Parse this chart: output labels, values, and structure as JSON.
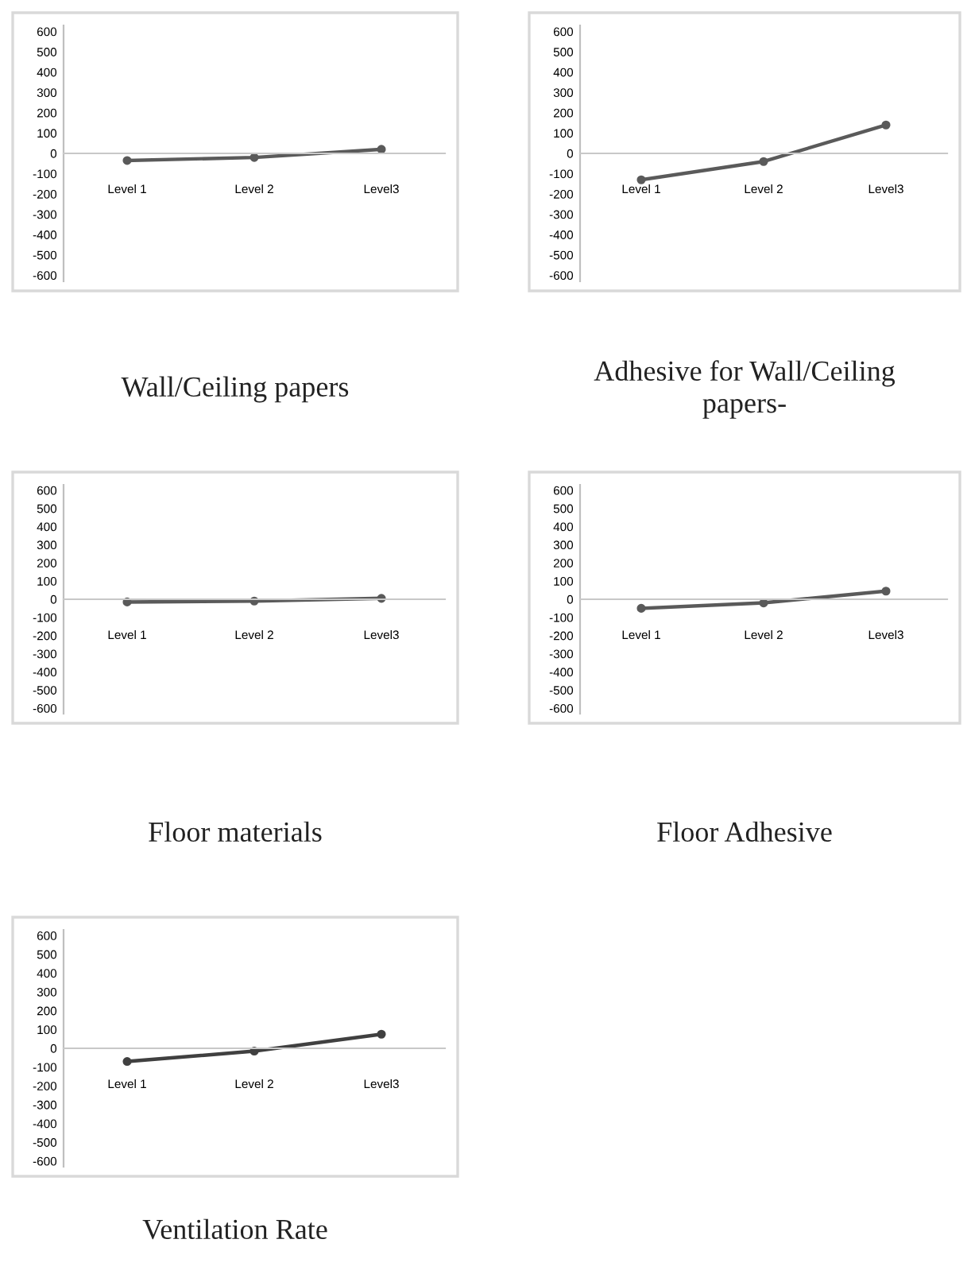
{
  "chart_data": [
    {
      "type": "line",
      "title": "Wall/Ceiling papers",
      "categories": [
        "Level 1",
        "Level 2",
        "Level3"
      ],
      "series": [
        {
          "color": "#5a5a5a",
          "values": [
            -35,
            -20,
            20
          ]
        }
      ],
      "ylim": [
        -630,
        630
      ],
      "yticks": [
        -600,
        -500,
        -400,
        -300,
        -200,
        -100,
        0,
        100,
        200,
        300,
        400,
        500,
        600
      ],
      "marker": "circle",
      "line_style": "solid",
      "grid": false
    },
    {
      "type": "line",
      "title": "Adhesive for Wall/Ceiling\npapers-",
      "categories": [
        "Level 1",
        "Level 2",
        "Level3"
      ],
      "series": [
        {
          "color": "#5a5a5a",
          "values": [
            -130,
            -40,
            140
          ]
        }
      ],
      "ylim": [
        -630,
        630
      ],
      "yticks": [
        -600,
        -500,
        -400,
        -300,
        -200,
        -100,
        0,
        100,
        200,
        300,
        400,
        500,
        600
      ],
      "marker": "circle",
      "line_style": "solid",
      "grid": false
    },
    {
      "type": "line",
      "title": "Floor materials",
      "categories": [
        "Level 1",
        "Level 2",
        "Level3"
      ],
      "series": [
        {
          "color": "#5a5a5a",
          "values": [
            -15,
            -10,
            5
          ]
        }
      ],
      "ylim": [
        -630,
        630
      ],
      "yticks": [
        -600,
        -500,
        -400,
        -300,
        -200,
        -100,
        0,
        100,
        200,
        300,
        400,
        500,
        600
      ],
      "marker": "circle",
      "line_style": "solid",
      "grid": false
    },
    {
      "type": "line",
      "title": "Floor Adhesive",
      "categories": [
        "Level 1",
        "Level 2",
        "Level3"
      ],
      "series": [
        {
          "color": "#5a5a5a",
          "values": [
            -50,
            -20,
            45
          ]
        }
      ],
      "ylim": [
        -630,
        630
      ],
      "yticks": [
        -600,
        -500,
        -400,
        -300,
        -200,
        -100,
        0,
        100,
        200,
        300,
        400,
        500,
        600
      ],
      "marker": "circle",
      "line_style": "solid",
      "grid": false
    },
    {
      "type": "line",
      "title": "Ventilation Rate",
      "categories": [
        "Level 1",
        "Level 2",
        "Level3"
      ],
      "series": [
        {
          "color": "#404040",
          "values": [
            -70,
            -15,
            75
          ]
        }
      ],
      "ylim": [
        -630,
        630
      ],
      "yticks": [
        -600,
        -500,
        -400,
        -300,
        -200,
        -100,
        0,
        100,
        200,
        300,
        400,
        500,
        600
      ],
      "marker": "circle",
      "line_style": "solid",
      "grid": false
    }
  ]
}
